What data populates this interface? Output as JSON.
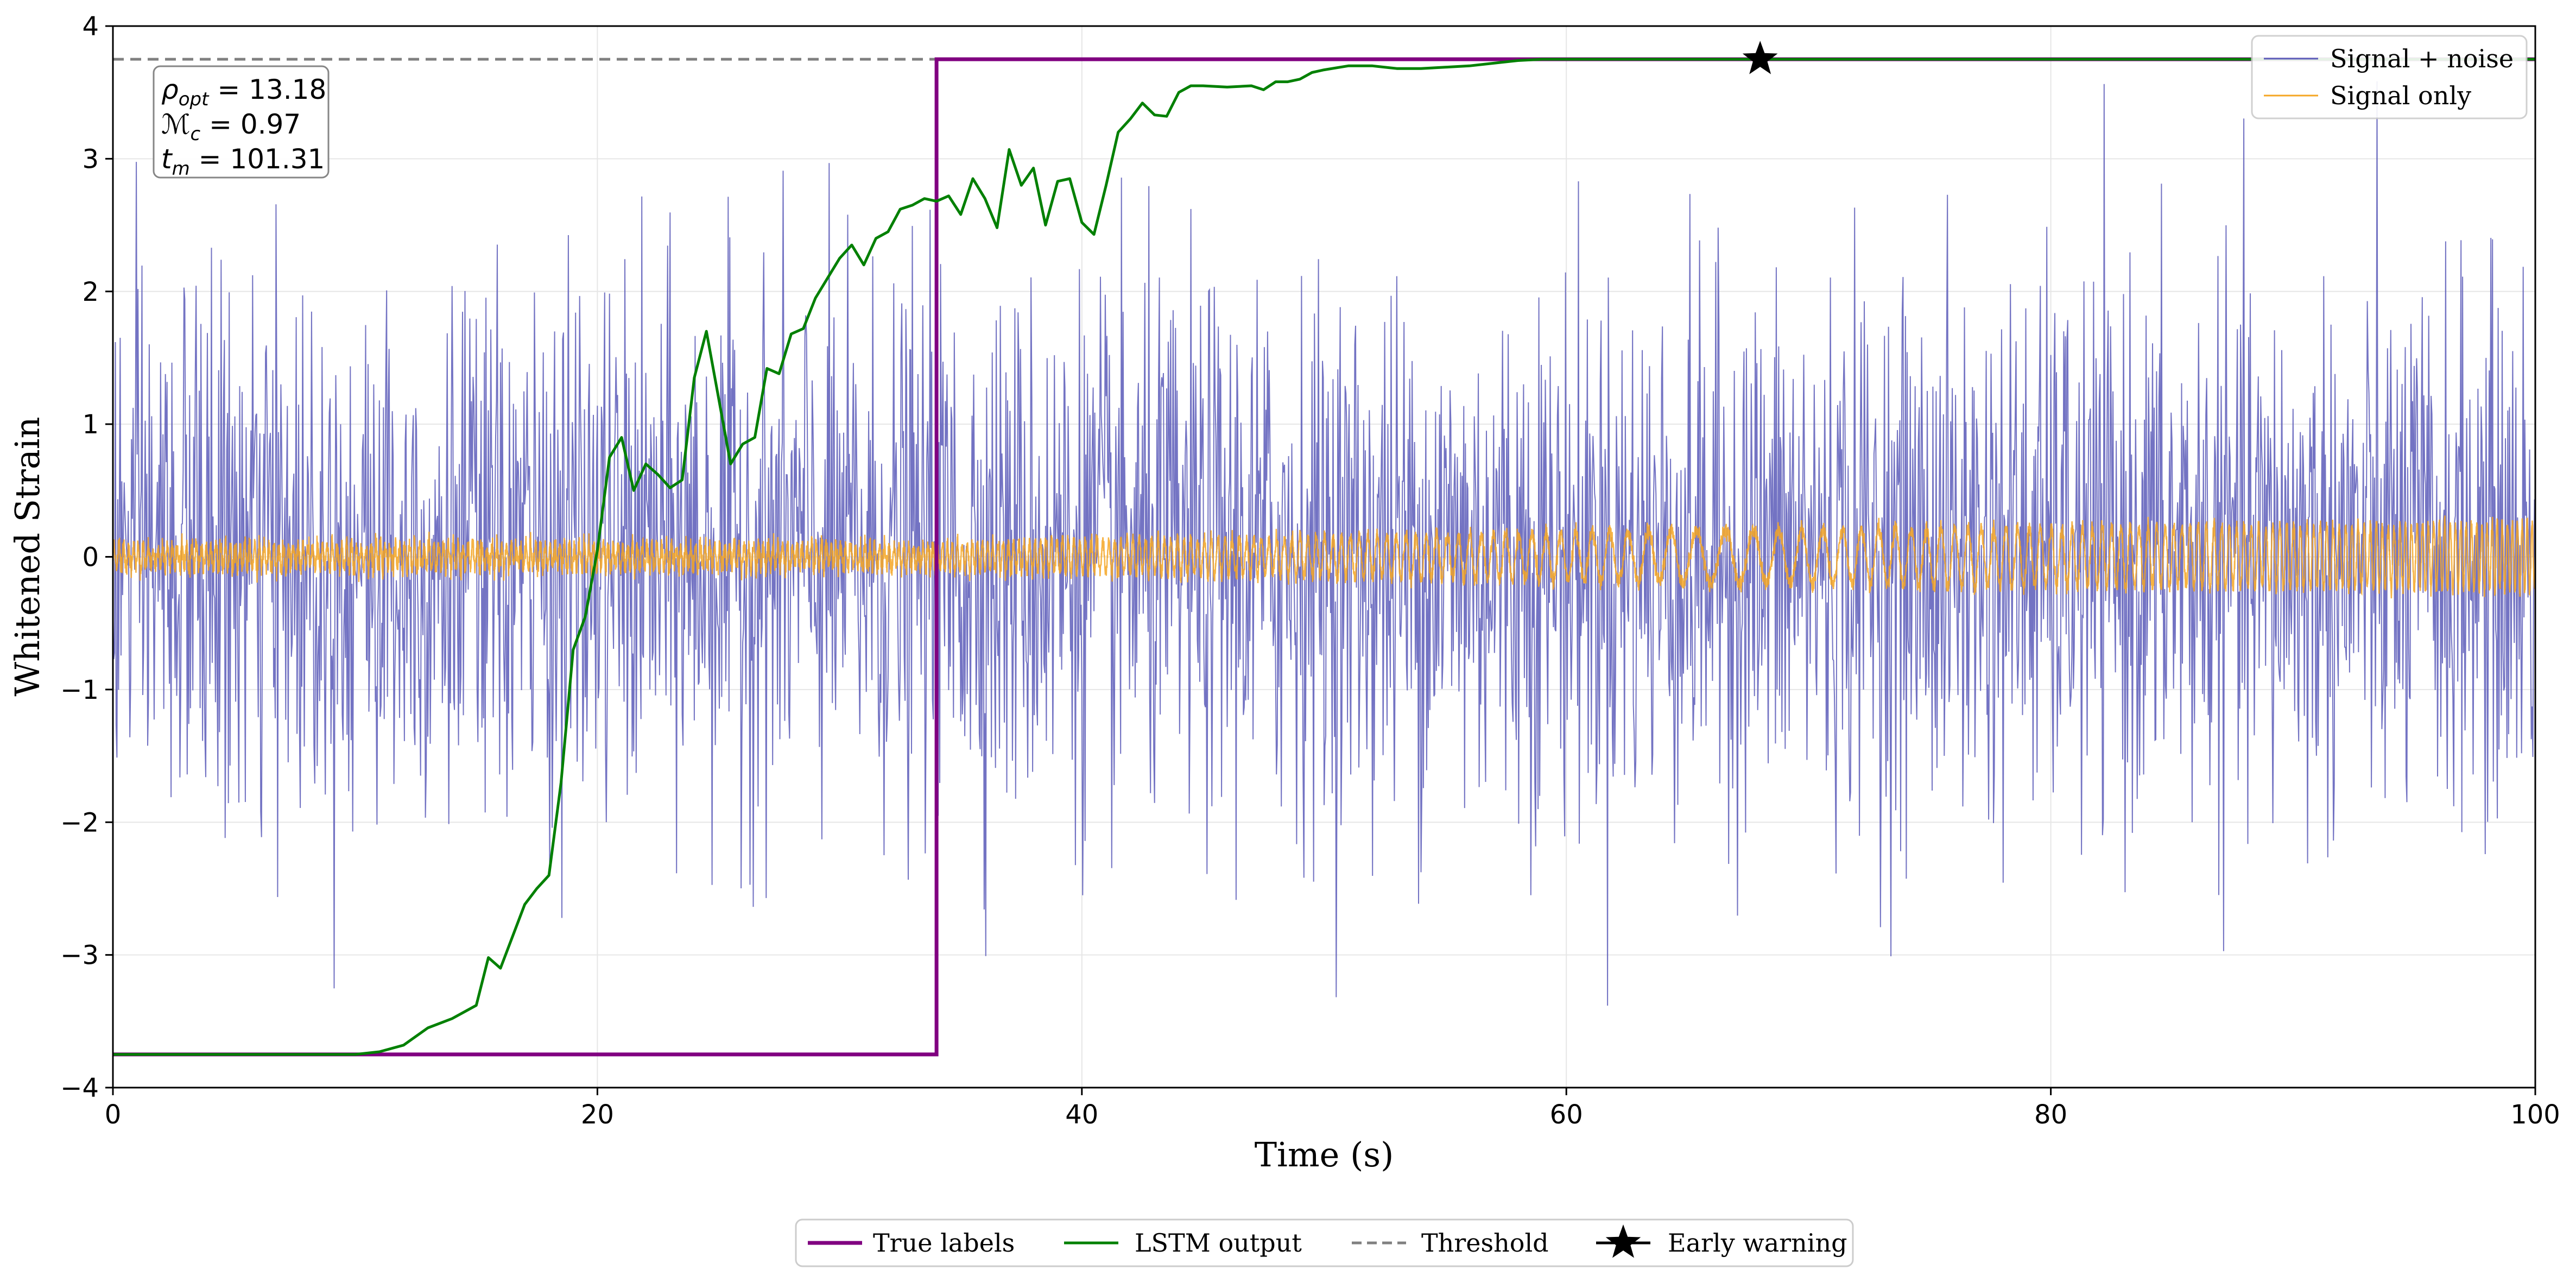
{
  "chart_data": {
    "type": "line",
    "title": "",
    "xlabel": "Time (s)",
    "ylabel": "Whitened Strain",
    "xlim": [
      0,
      100
    ],
    "ylim": [
      -4,
      4
    ],
    "xticks": [
      0,
      20,
      40,
      60,
      80,
      100
    ],
    "xtick_labels": [
      "0",
      "20",
      "40",
      "60",
      "80",
      "100"
    ],
    "yticks": [
      -4,
      -3,
      -2,
      -1,
      0,
      1,
      2,
      3,
      4
    ],
    "ytick_labels": [
      "−4",
      "−3",
      "−2",
      "−1",
      "0",
      "1",
      "2",
      "3",
      "4"
    ],
    "grid": true,
    "threshold": 3.75,
    "colors": {
      "signal_noise": "#5b5bb8",
      "signal_only": "#f5a623",
      "true_labels": "#800080",
      "lstm": "#008000",
      "threshold": "#808080",
      "marker": "#000000"
    },
    "series": [
      {
        "name": "Signal + noise",
        "kind": "noise",
        "description_stats": {
          "std": 1.0,
          "peak_abs": 3.6,
          "x_range": [
            0,
            100
          ],
          "samples": 3000
        }
      },
      {
        "name": "Signal only",
        "kind": "chirp",
        "description_stats": {
          "amplitude": [
            0.1,
            0.25
          ],
          "onset": 34,
          "merger_min_frequency_at": 66,
          "x_range": [
            0,
            100
          ]
        }
      },
      {
        "name": "True labels",
        "kind": "step",
        "x": [
          0,
          34,
          34,
          100
        ],
        "y": [
          -3.75,
          -3.75,
          3.75,
          3.75
        ]
      },
      {
        "name": "LSTM output",
        "kind": "line",
        "x": [
          0,
          10,
          11,
          12,
          13,
          14,
          15,
          15.5,
          16,
          17,
          17.5,
          18,
          18.5,
          19,
          19.5,
          20,
          20.5,
          21,
          21.5,
          22,
          22.5,
          23,
          23.5,
          24,
          24.5,
          25,
          25.5,
          26,
          26.5,
          27,
          27.5,
          28,
          28.5,
          29,
          29.5,
          30,
          30.5,
          31,
          31.5,
          32,
          32.5,
          33,
          33.5,
          34,
          34.5,
          35,
          35.5,
          36,
          36.5,
          37,
          37.5,
          38,
          38.5,
          39,
          39.5,
          40,
          40.5,
          41,
          41.5,
          42,
          42.5,
          43,
          43.5,
          44,
          44.5,
          45,
          46,
          47,
          47.5,
          48,
          48.5,
          49,
          49.5,
          50,
          51,
          52,
          53,
          54,
          55,
          56,
          57,
          58,
          59,
          60,
          62,
          65,
          68,
          100
        ],
        "y": [
          -3.75,
          -3.75,
          -3.73,
          -3.68,
          -3.55,
          -3.48,
          -3.38,
          -3.02,
          -3.1,
          -2.62,
          -2.5,
          -2.4,
          -1.7,
          -0.7,
          -0.45,
          0.05,
          0.75,
          0.9,
          0.5,
          0.7,
          0.62,
          0.52,
          0.58,
          1.35,
          1.7,
          1.2,
          0.7,
          0.85,
          0.9,
          1.42,
          1.38,
          1.68,
          1.72,
          1.95,
          2.1,
          2.25,
          2.35,
          2.2,
          2.4,
          2.45,
          2.62,
          2.65,
          2.7,
          2.68,
          2.72,
          2.58,
          2.85,
          2.7,
          2.48,
          3.07,
          2.8,
          2.93,
          2.5,
          2.83,
          2.85,
          2.52,
          2.43,
          2.8,
          3.2,
          3.3,
          3.42,
          3.33,
          3.32,
          3.5,
          3.55,
          3.55,
          3.54,
          3.55,
          3.52,
          3.58,
          3.58,
          3.6,
          3.65,
          3.67,
          3.7,
          3.7,
          3.68,
          3.68,
          3.69,
          3.7,
          3.72,
          3.74,
          3.75,
          3.75,
          3.75,
          3.75,
          3.75,
          3.75
        ]
      },
      {
        "name": "Threshold",
        "kind": "hline",
        "y": 3.75
      },
      {
        "name": "Early warning",
        "kind": "marker",
        "x": [
          68
        ],
        "y": [
          3.75
        ]
      }
    ],
    "legend_top": {
      "position": "upper-right",
      "entries": [
        "Signal + noise",
        "Signal only"
      ]
    },
    "legend_bottom": {
      "position": "below-plot-center",
      "entries": [
        "True labels",
        "LSTM output",
        "Threshold",
        "Early warning"
      ]
    },
    "annotation": {
      "position": "upper-left",
      "lines": [
        {
          "symbol": "ρ",
          "sub": "opt",
          "value": " = 13.18"
        },
        {
          "symbol": "ℳ",
          "sub": "c",
          "value": " = 0.97"
        },
        {
          "symbol": "t",
          "sub": "m",
          "value": " = 101.31"
        }
      ]
    }
  }
}
